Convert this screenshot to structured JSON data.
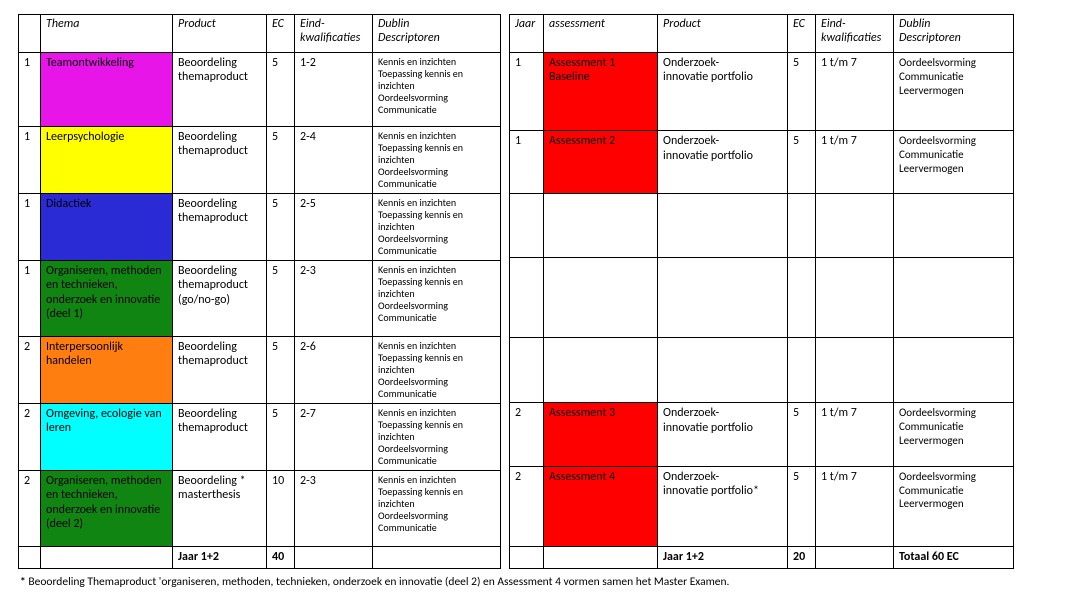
{
  "colors": {
    "magenta": "#e815e8",
    "yellow": "#ffff00",
    "blue": "#2b2bd6",
    "green": "#118511",
    "orange": "#ff7e0f",
    "cyan": "#00ffff",
    "red": "#ff0000"
  },
  "left": {
    "headers": {
      "num": "",
      "thema": "Thema",
      "product": "Product",
      "ec": "EC",
      "eind": "Eind-\nkwalificaties",
      "dublin": "Dublin\nDescriptoren"
    },
    "rows": [
      {
        "num": "1",
        "thema": "Teamontwikkeling",
        "color": "magenta",
        "product": "Beoordeling\nthemaproduct",
        "ec": "5",
        "eind": "1-2",
        "dublin": "Kennis en inzichten\nToepassing kennis en inzichten\nOordeelsvorming\nCommunicatie"
      },
      {
        "num": "1",
        "thema": "Leerpsychologie",
        "color": "yellow",
        "product": "Beoordeling\nthemaproduct",
        "ec": "5",
        "eind": "2-4",
        "dublin": "Kennis en inzichten\nToepassing kennis en inzichten\nOordeelsvorming\nCommunicatie"
      },
      {
        "num": "1",
        "thema": "Didactiek",
        "color": "blue",
        "product": "Beoordeling\nthemaproduct",
        "ec": "5",
        "eind": "2-5",
        "dublin": "Kennis en inzichten\nToepassing kennis en inzichten\nOordeelsvorming\nCommunicatie"
      },
      {
        "num": "1",
        "thema": "Organiseren, methoden en technieken, onderzoek en innovatie (deel 1)",
        "color": "green",
        "product": "Beoordeling\nthemaproduct\n(go/no-go)",
        "ec": "5",
        "eind": "2-3",
        "dublin": "Kennis en inzichten\nToepassing kennis en inzichten\nOordeelsvorming\nCommunicatie"
      },
      {
        "num": "2",
        "thema": "Interpersoonlijk handelen",
        "color": "orange",
        "product": "Beoordeling\nthemaproduct",
        "ec": "5",
        "eind": "2-6",
        "dublin": "Kennis en inzichten\nToepassing kennis en inzichten\nOordeelsvorming\nCommunicatie"
      },
      {
        "num": "2",
        "thema": "Omgeving, ecologie van leren",
        "color": "cyan",
        "product": "Beoordeling\nthemaproduct",
        "ec": "5",
        "eind": "2-7",
        "dublin": "Kennis en inzichten\nToepassing kennis en inzichten\nOordeelsvorming\nCommunicatie"
      },
      {
        "num": "2",
        "thema": "Organiseren, methoden en technieken, onderzoek en innovatie (deel 2)",
        "color": "green",
        "product": "Beoordeling *\nmasterthesis",
        "ec": "10",
        "eind": "2-3",
        "dublin": "Kennis en inzichten\nToepassing kennis en inzichten\nOordeelsvorming\nCommunicatie"
      }
    ],
    "summary": {
      "label": "Jaar 1+2",
      "ec": "40"
    }
  },
  "right": {
    "headers": {
      "jaar": "Jaar",
      "assessment": "assessment",
      "product": "Product",
      "ec": "EC",
      "eind": "Eind-\nkwalificaties",
      "dublin": "Dublin\nDescriptoren"
    },
    "rows": [
      {
        "jaar": "1",
        "assessment": "Assessment 1\nBaseline",
        "color": "red",
        "product": "Onderzoek-\ninnovatie portfolio",
        "ec": "5",
        "eind": "1 t/m 7",
        "dublin": "Oordeelsvorming\nCommunicatie\nLeervermogen"
      },
      {
        "jaar": "1",
        "assessment": "Assessment 2",
        "color": "red",
        "product": "Onderzoek-\ninnovatie portfolio",
        "ec": "5",
        "eind": "1 t/m 7",
        "dublin": "Oordeelsvorming\nCommunicatie\nLeervermogen"
      },
      {
        "jaar": "",
        "assessment": "",
        "color": "",
        "product": "",
        "ec": "",
        "eind": "",
        "dublin": ""
      },
      {
        "jaar": "",
        "assessment": "",
        "color": "",
        "product": "",
        "ec": "",
        "eind": "",
        "dublin": ""
      },
      {
        "jaar": "",
        "assessment": "",
        "color": "",
        "product": "",
        "ec": "",
        "eind": "",
        "dublin": ""
      },
      {
        "jaar": "2",
        "assessment": "Assessment 3",
        "color": "red",
        "product": "Onderzoek-\ninnovatie portfolio",
        "ec": "5",
        "eind": "1 t/m 7",
        "dublin": "Oordeelsvorming\nCommunicatie\nLeervermogen"
      },
      {
        "jaar": "2",
        "assessment": "Assessment 4",
        "color": "red",
        "product": "Onderzoek-\ninnovatie portfolio*",
        "ec": "5",
        "eind": "1 t/m 7",
        "dublin": "Oordeelsvorming\nCommunicatie\nLeervermogen"
      }
    ],
    "summary": {
      "label": "Jaar 1+2",
      "ec": "20",
      "total": "Totaal 60 EC"
    }
  },
  "footnote": "Beoordeling Themaproduct 'organiseren, methoden, technieken, onderzoek en innovatie (deel 2) en Assessment 4 vormen samen het Master Examen."
}
